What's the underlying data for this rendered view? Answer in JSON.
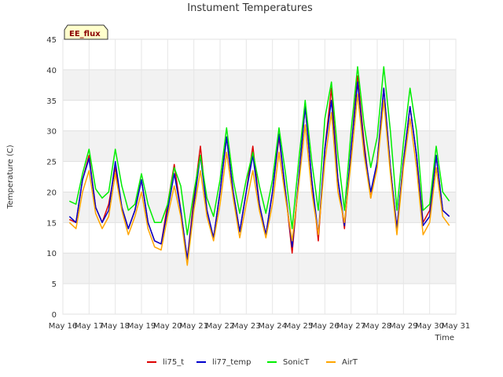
{
  "chart_data": {
    "type": "line",
    "title": "Instument Temperatures",
    "xlabel": "Time",
    "ylabel": "Temperature (C)",
    "badge": "EE_flux",
    "ylim": [
      0,
      45
    ],
    "yticks": [
      0,
      5,
      10,
      15,
      20,
      25,
      30,
      35,
      40,
      45
    ],
    "xlim": [
      16,
      31
    ],
    "xticks": [
      {
        "value": 16,
        "label": "May 16"
      },
      {
        "value": 17,
        "label": "May 17"
      },
      {
        "value": 18,
        "label": "May 18"
      },
      {
        "value": 19,
        "label": "May 19"
      },
      {
        "value": 20,
        "label": "May 20"
      },
      {
        "value": 21,
        "label": "May 21"
      },
      {
        "value": 22,
        "label": "May 22"
      },
      {
        "value": 23,
        "label": "May 23"
      },
      {
        "value": 24,
        "label": "May 24"
      },
      {
        "value": 25,
        "label": "May 25"
      },
      {
        "value": 26,
        "label": "May 26"
      },
      {
        "value": 27,
        "label": "May 27"
      },
      {
        "value": 28,
        "label": "May 28"
      },
      {
        "value": 29,
        "label": "May 29"
      },
      {
        "value": 30,
        "label": "May 30"
      },
      {
        "value": 31,
        "label": "May 31"
      }
    ],
    "grid": true,
    "legend_position": "bottom",
    "series": [
      {
        "name": "li75_t",
        "color": "#dd0000",
        "x": [
          16.25,
          16.5,
          16.75,
          17.0,
          17.25,
          17.5,
          17.75,
          18.0,
          18.25,
          18.5,
          18.75,
          19.0,
          19.25,
          19.5,
          19.75,
          20.0,
          20.25,
          20.5,
          20.75,
          21.0,
          21.25,
          21.5,
          21.75,
          22.0,
          22.25,
          22.5,
          22.75,
          23.0,
          23.25,
          23.5,
          23.75,
          24.0,
          24.25,
          24.5,
          24.75,
          25.0,
          25.25,
          25.5,
          25.75,
          26.0,
          26.25,
          26.5,
          26.75,
          27.0,
          27.25,
          27.5,
          27.75,
          28.0,
          28.25,
          28.5,
          28.75,
          29.0,
          29.25,
          29.5,
          29.75,
          30.0,
          30.25,
          30.5,
          30.75
        ],
        "y": [
          15.5,
          15,
          22,
          26,
          17.5,
          15,
          18,
          24,
          17.5,
          14,
          17,
          22,
          15,
          12,
          11.5,
          18,
          24.5,
          17,
          9,
          19,
          27.5,
          17,
          12.5,
          20,
          29,
          20,
          13.5,
          20,
          27.5,
          18,
          13,
          20,
          29,
          20,
          10,
          22,
          34,
          22,
          12,
          27,
          37,
          22,
          14,
          27,
          39,
          28,
          19,
          25,
          37,
          24,
          14,
          25,
          34,
          26,
          15,
          17,
          26,
          17,
          16
        ]
      },
      {
        "name": "li77_temp",
        "color": "#0000cc",
        "x": [
          16.25,
          16.5,
          16.75,
          17.0,
          17.25,
          17.5,
          17.75,
          18.0,
          18.25,
          18.5,
          18.75,
          19.0,
          19.25,
          19.5,
          19.75,
          20.0,
          20.25,
          20.5,
          20.75,
          21.0,
          21.25,
          21.5,
          21.75,
          22.0,
          22.25,
          22.5,
          22.75,
          23.0,
          23.25,
          23.5,
          23.75,
          24.0,
          24.25,
          24.5,
          24.75,
          25.0,
          25.25,
          25.5,
          25.75,
          26.0,
          26.25,
          26.5,
          26.75,
          27.0,
          27.25,
          27.5,
          27.75,
          28.0,
          28.25,
          28.5,
          28.75,
          29.0,
          29.25,
          29.5,
          29.75,
          30.0,
          30.25,
          30.5,
          30.75
        ],
        "y": [
          16,
          15,
          22,
          25.5,
          17.5,
          15,
          17,
          25,
          17.5,
          14,
          17,
          22,
          15,
          12,
          11.5,
          17,
          23,
          17,
          9,
          18,
          26,
          17,
          12.5,
          20,
          29,
          20,
          13.5,
          20,
          26,
          18,
          13,
          20,
          29.5,
          20,
          11,
          22,
          34,
          22,
          13,
          27,
          35,
          22,
          14.5,
          27,
          38,
          27,
          20,
          25,
          37,
          24,
          14,
          25,
          34,
          26,
          14.5,
          16,
          26,
          17,
          16
        ]
      },
      {
        "name": "SonicT",
        "color": "#00ee00",
        "x": [
          16.25,
          16.5,
          16.75,
          17.0,
          17.25,
          17.5,
          17.75,
          18.0,
          18.25,
          18.5,
          18.75,
          19.0,
          19.25,
          19.5,
          19.75,
          20.0,
          20.25,
          20.5,
          20.75,
          21.0,
          21.25,
          21.5,
          21.75,
          22.0,
          22.25,
          22.5,
          22.75,
          23.0,
          23.25,
          23.5,
          23.75,
          24.0,
          24.25,
          24.5,
          24.75,
          25.0,
          25.25,
          25.5,
          25.75,
          26.0,
          26.25,
          26.5,
          26.75,
          27.0,
          27.25,
          27.5,
          27.75,
          28.0,
          28.25,
          28.5,
          28.75,
          29.0,
          29.25,
          29.5,
          29.75,
          30.0,
          30.25,
          30.5,
          30.75
        ],
        "y": [
          18.5,
          18,
          23,
          27,
          20.5,
          19,
          20,
          27,
          21,
          17,
          18,
          23,
          18,
          15,
          15,
          18,
          24,
          21,
          13,
          20,
          26,
          19,
          16,
          22,
          30.5,
          22,
          16.5,
          22,
          26.5,
          21,
          16.5,
          22,
          30.5,
          23,
          14,
          25,
          35,
          25,
          17,
          32,
          38,
          26,
          17,
          30,
          40.5,
          31,
          24,
          29,
          40.5,
          30,
          17,
          28,
          37,
          30,
          17,
          18,
          27.5,
          20,
          18.5
        ]
      },
      {
        "name": "AirT",
        "color": "#ffa500",
        "x": [
          16.25,
          16.5,
          16.75,
          17.0,
          17.25,
          17.5,
          17.75,
          18.0,
          18.25,
          18.5,
          18.75,
          19.0,
          19.25,
          19.5,
          19.75,
          20.0,
          20.25,
          20.5,
          20.75,
          21.0,
          21.25,
          21.5,
          21.75,
          22.0,
          22.25,
          22.5,
          22.75,
          23.0,
          23.25,
          23.5,
          23.75,
          24.0,
          24.25,
          24.5,
          24.75,
          25.0,
          25.25,
          25.5,
          25.75,
          26.0,
          26.25,
          26.5,
          26.75,
          27.0,
          27.25,
          27.5,
          27.75,
          28.0,
          28.25,
          28.5,
          28.75,
          29.0,
          29.25,
          29.5,
          29.75,
          30.0,
          30.25,
          30.5,
          30.75
        ],
        "y": [
          15,
          14,
          20,
          23.5,
          16.5,
          14,
          16,
          23,
          17,
          13,
          16,
          20,
          14,
          11,
          10.5,
          16,
          21,
          16,
          8,
          17,
          23.5,
          16,
          12,
          18,
          26.5,
          19,
          12.5,
          18,
          23.5,
          17,
          12.5,
          18,
          26.5,
          19,
          12,
          21,
          31,
          20,
          13,
          25,
          33,
          20,
          15,
          25,
          36,
          26,
          19,
          24,
          35,
          23,
          13,
          24,
          32,
          24,
          13,
          15,
          24,
          16,
          14.5
        ]
      }
    ]
  }
}
